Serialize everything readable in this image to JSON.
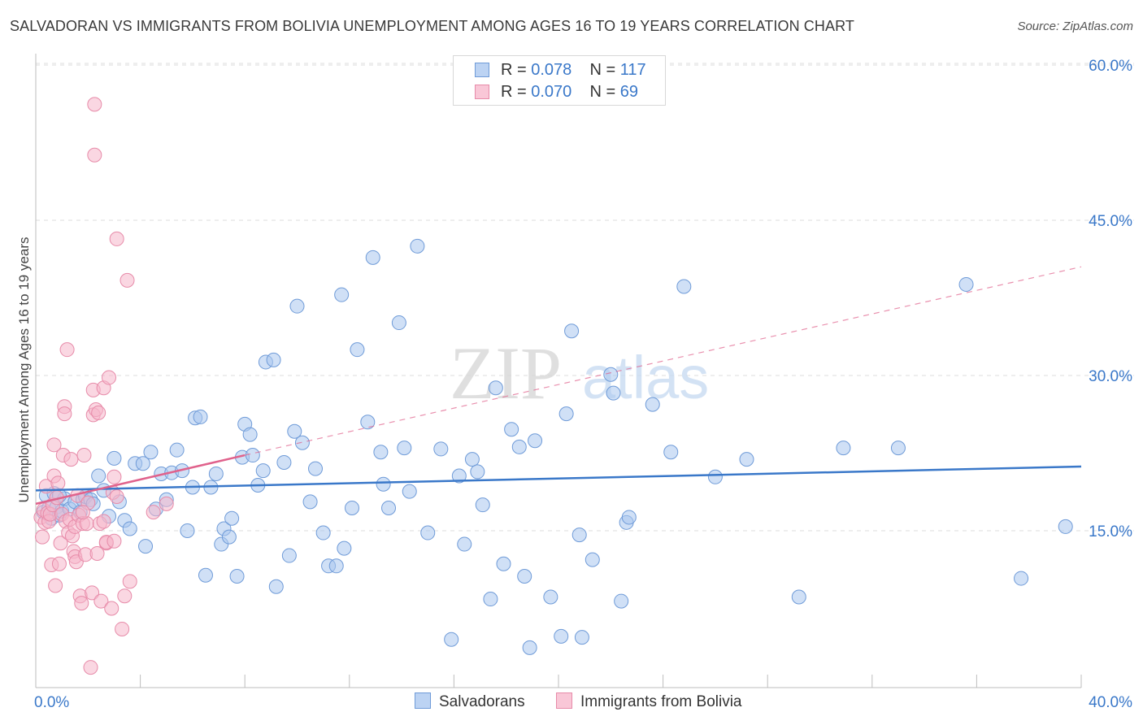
{
  "header": {
    "title": "SALVADORAN VS IMMIGRANTS FROM BOLIVIA UNEMPLOYMENT AMONG AGES 16 TO 19 YEARS CORRELATION CHART",
    "source": "Source: ZipAtlas.com"
  },
  "legend_box": {
    "rows": [
      {
        "r_label": "R =",
        "r_value": "0.078",
        "n_label": "N =",
        "n_value": "117"
      },
      {
        "r_label": "R =",
        "r_value": "0.070",
        "n_label": "N =",
        "n_value": "69"
      }
    ]
  },
  "bottom_legend": {
    "salvadorans": "Salvadorans",
    "bolivia": "Immigrants from Bolivia"
  },
  "watermark": {
    "zip": "ZIP",
    "atlas": "atlas"
  },
  "colors": {
    "blue": "#3a78c9",
    "blue_fill": "#a9c6ef",
    "pink": "#e0628c",
    "pink_fill": "#f6b6cb",
    "grid": "#dcdcdc",
    "tick_label": "#3a78c9"
  },
  "chart_data": {
    "type": "scatter",
    "title": "SALVADORAN VS IMMIGRANTS FROM BOLIVIA UNEMPLOYMENT AMONG AGES 16 TO 19 YEARS CORRELATION CHART",
    "xlabel": "",
    "ylabel": "Unemployment Among Ages 16 to 19 years",
    "xlim": [
      0,
      40
    ],
    "ylim": [
      0,
      60
    ],
    "x_tick_labels": [
      "0.0%",
      "40.0%"
    ],
    "y_ticks": [
      15,
      30,
      45,
      60
    ],
    "y_tick_labels": [
      "15.0%",
      "30.0%",
      "45.0%",
      "60.0%"
    ],
    "series": [
      {
        "name": "Salvadorans",
        "R": 0.078,
        "N": 117,
        "trend": {
          "x": [
            0,
            40
          ],
          "y": [
            18.9,
            21.2
          ],
          "style": "solid"
        },
        "points": [
          [
            0.3,
            16.8
          ],
          [
            0.4,
            18.4
          ],
          [
            0.5,
            17.2
          ],
          [
            0.6,
            16.2
          ],
          [
            0.7,
            18.6
          ],
          [
            0.8,
            17.3
          ],
          [
            0.9,
            16.5
          ],
          [
            1.0,
            16.9
          ],
          [
            1.1,
            18.1
          ],
          [
            1.3,
            17.1
          ],
          [
            1.5,
            17.8
          ],
          [
            1.7,
            16.8
          ],
          [
            1.8,
            18.0
          ],
          [
            1.9,
            18.3
          ],
          [
            2.1,
            18.0
          ],
          [
            2.2,
            17.6
          ],
          [
            2.4,
            20.3
          ],
          [
            2.6,
            18.9
          ],
          [
            2.8,
            16.4
          ],
          [
            3.0,
            22.0
          ],
          [
            3.2,
            17.8
          ],
          [
            3.4,
            16.0
          ],
          [
            3.6,
            15.2
          ],
          [
            3.8,
            21.5
          ],
          [
            4.1,
            21.5
          ],
          [
            4.2,
            13.5
          ],
          [
            4.4,
            22.6
          ],
          [
            4.6,
            17.1
          ],
          [
            4.8,
            20.5
          ],
          [
            5.0,
            18.0
          ],
          [
            5.2,
            20.6
          ],
          [
            5.4,
            22.8
          ],
          [
            5.6,
            20.8
          ],
          [
            5.8,
            15.0
          ],
          [
            6.0,
            19.2
          ],
          [
            6.1,
            25.9
          ],
          [
            6.3,
            26.0
          ],
          [
            6.5,
            10.7
          ],
          [
            6.7,
            19.2
          ],
          [
            6.9,
            20.5
          ],
          [
            7.1,
            13.7
          ],
          [
            7.2,
            15.2
          ],
          [
            7.4,
            14.4
          ],
          [
            7.5,
            16.2
          ],
          [
            7.7,
            10.6
          ],
          [
            7.9,
            22.1
          ],
          [
            8.0,
            25.3
          ],
          [
            8.2,
            24.3
          ],
          [
            8.3,
            22.3
          ],
          [
            8.5,
            19.4
          ],
          [
            8.7,
            20.8
          ],
          [
            8.8,
            31.3
          ],
          [
            9.1,
            31.5
          ],
          [
            9.2,
            9.6
          ],
          [
            9.5,
            21.6
          ],
          [
            9.7,
            12.6
          ],
          [
            9.9,
            24.6
          ],
          [
            10.0,
            36.7
          ],
          [
            10.2,
            23.5
          ],
          [
            10.5,
            17.8
          ],
          [
            10.7,
            21.0
          ],
          [
            11.0,
            14.8
          ],
          [
            11.2,
            11.6
          ],
          [
            11.5,
            11.6
          ],
          [
            11.7,
            37.8
          ],
          [
            11.8,
            13.3
          ],
          [
            12.1,
            17.2
          ],
          [
            12.3,
            32.5
          ],
          [
            12.7,
            25.5
          ],
          [
            12.9,
            41.4
          ],
          [
            13.2,
            22.6
          ],
          [
            13.3,
            19.5
          ],
          [
            13.5,
            17.2
          ],
          [
            13.9,
            35.1
          ],
          [
            14.1,
            23.0
          ],
          [
            14.3,
            18.8
          ],
          [
            14.6,
            42.5
          ],
          [
            15.0,
            14.8
          ],
          [
            15.5,
            22.9
          ],
          [
            15.9,
            4.5
          ],
          [
            16.2,
            20.3
          ],
          [
            16.4,
            13.7
          ],
          [
            16.7,
            21.9
          ],
          [
            16.9,
            20.7
          ],
          [
            17.1,
            17.5
          ],
          [
            17.4,
            8.4
          ],
          [
            17.6,
            28.8
          ],
          [
            17.9,
            11.8
          ],
          [
            18.2,
            24.8
          ],
          [
            18.5,
            23.1
          ],
          [
            18.7,
            10.6
          ],
          [
            18.9,
            3.7
          ],
          [
            19.1,
            23.7
          ],
          [
            19.7,
            8.6
          ],
          [
            20.1,
            4.8
          ],
          [
            20.3,
            26.3
          ],
          [
            20.5,
            34.3
          ],
          [
            20.8,
            14.6
          ],
          [
            20.9,
            4.7
          ],
          [
            21.3,
            12.2
          ],
          [
            22.0,
            30.1
          ],
          [
            22.1,
            28.3
          ],
          [
            22.4,
            8.2
          ],
          [
            22.6,
            15.8
          ],
          [
            22.7,
            16.3
          ],
          [
            23.6,
            27.2
          ],
          [
            24.3,
            22.6
          ],
          [
            24.8,
            38.6
          ],
          [
            26.0,
            20.2
          ],
          [
            27.2,
            21.9
          ],
          [
            29.2,
            8.6
          ],
          [
            30.9,
            23.0
          ],
          [
            33.0,
            23.0
          ],
          [
            35.6,
            38.8
          ],
          [
            37.7,
            10.4
          ],
          [
            39.4,
            15.4
          ],
          [
            0.9,
            18.4
          ]
        ]
      },
      {
        "name": "Immigrants from Bolivia",
        "R": 0.07,
        "N": 69,
        "trend": {
          "x": [
            0,
            8
          ],
          "y": [
            17.6,
            22.3
          ],
          "style": "solid",
          "extended": {
            "x": [
              8,
              40
            ],
            "y": [
              22.3,
              40.5
            ],
            "style": "dashed"
          }
        },
        "points": [
          [
            0.2,
            16.3
          ],
          [
            0.25,
            14.4
          ],
          [
            0.3,
            17.0
          ],
          [
            0.35,
            15.8
          ],
          [
            0.4,
            19.3
          ],
          [
            0.45,
            16.7
          ],
          [
            0.5,
            15.9
          ],
          [
            0.55,
            16.6
          ],
          [
            0.6,
            11.7
          ],
          [
            0.65,
            17.5
          ],
          [
            0.7,
            20.3
          ],
          [
            0.7,
            23.3
          ],
          [
            0.75,
            9.7
          ],
          [
            0.8,
            18.2
          ],
          [
            0.85,
            19.6
          ],
          [
            0.9,
            11.8
          ],
          [
            0.95,
            13.8
          ],
          [
            1.0,
            16.6
          ],
          [
            1.05,
            22.3
          ],
          [
            1.1,
            27.0
          ],
          [
            1.1,
            26.3
          ],
          [
            1.15,
            15.9
          ],
          [
            1.2,
            32.5
          ],
          [
            1.25,
            14.8
          ],
          [
            1.3,
            16.1
          ],
          [
            1.35,
            21.9
          ],
          [
            1.4,
            14.5
          ],
          [
            1.45,
            13.0
          ],
          [
            1.5,
            15.4
          ],
          [
            1.5,
            12.5
          ],
          [
            1.55,
            12.0
          ],
          [
            1.6,
            18.4
          ],
          [
            1.65,
            16.5
          ],
          [
            1.7,
            8.7
          ],
          [
            1.75,
            8.0
          ],
          [
            1.8,
            15.7
          ],
          [
            1.85,
            22.3
          ],
          [
            1.9,
            12.7
          ],
          [
            1.95,
            15.7
          ],
          [
            2.0,
            17.7
          ],
          [
            2.1,
            1.8
          ],
          [
            2.15,
            9.0
          ],
          [
            2.2,
            28.6
          ],
          [
            2.2,
            26.2
          ],
          [
            2.3,
            26.7
          ],
          [
            2.35,
            12.8
          ],
          [
            2.4,
            26.4
          ],
          [
            2.45,
            15.7
          ],
          [
            2.5,
            8.2
          ],
          [
            2.6,
            28.8
          ],
          [
            2.6,
            15.9
          ],
          [
            2.7,
            13.8
          ],
          [
            2.8,
            29.8
          ],
          [
            2.9,
            7.5
          ],
          [
            2.95,
            18.7
          ],
          [
            3.0,
            20.2
          ],
          [
            3.1,
            18.3
          ],
          [
            3.3,
            5.5
          ],
          [
            3.4,
            8.7
          ],
          [
            3.6,
            10.1
          ],
          [
            2.25,
            51.3
          ],
          [
            2.25,
            56.2
          ],
          [
            3.1,
            43.2
          ],
          [
            3.5,
            39.2
          ],
          [
            4.5,
            16.8
          ],
          [
            5.0,
            17.6
          ],
          [
            2.7,
            13.9
          ],
          [
            3.0,
            14.0
          ],
          [
            1.8,
            16.8
          ]
        ]
      }
    ]
  }
}
